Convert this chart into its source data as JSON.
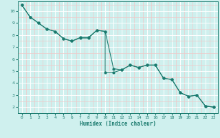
{
  "xlabel": "Humidex (Indice chaleur)",
  "bg_color": "#cff0ee",
  "line_color": "#1a7a6e",
  "grid_major_color": "#ffffff",
  "grid_minor_color": "#f0c8c8",
  "xlim": [
    -0.5,
    23.5
  ],
  "ylim": [
    1.5,
    10.8
  ],
  "yticks": [
    2,
    3,
    4,
    5,
    6,
    7,
    8,
    9,
    10
  ],
  "xticks": [
    0,
    1,
    2,
    3,
    4,
    5,
    6,
    7,
    8,
    9,
    10,
    11,
    12,
    13,
    14,
    15,
    16,
    17,
    18,
    19,
    20,
    21,
    22,
    23
  ],
  "line1_x": [
    0,
    1,
    2,
    3,
    4,
    5,
    6,
    7,
    8,
    9,
    10,
    11,
    12,
    13,
    14,
    15,
    16,
    17,
    18,
    19,
    20,
    21,
    22,
    23
  ],
  "line1_y": [
    10.5,
    9.5,
    9.0,
    8.5,
    8.3,
    7.7,
    7.5,
    7.8,
    7.8,
    8.4,
    8.3,
    5.2,
    5.1,
    5.5,
    5.3,
    5.5,
    5.5,
    4.4,
    4.3,
    3.2,
    2.9,
    3.0,
    2.1,
    2.0
  ],
  "line2_x": [
    0,
    1,
    2,
    3,
    4,
    5,
    6,
    7,
    8,
    9,
    10,
    10,
    11,
    12,
    13,
    14,
    15,
    16,
    17,
    18,
    19,
    20,
    21,
    22,
    23
  ],
  "line2_y": [
    10.5,
    9.5,
    9.0,
    8.5,
    8.3,
    7.7,
    7.5,
    7.75,
    7.75,
    8.4,
    8.3,
    4.9,
    4.9,
    5.1,
    5.5,
    5.3,
    5.5,
    5.5,
    4.4,
    4.3,
    3.2,
    2.9,
    3.0,
    2.1,
    2.0
  ]
}
